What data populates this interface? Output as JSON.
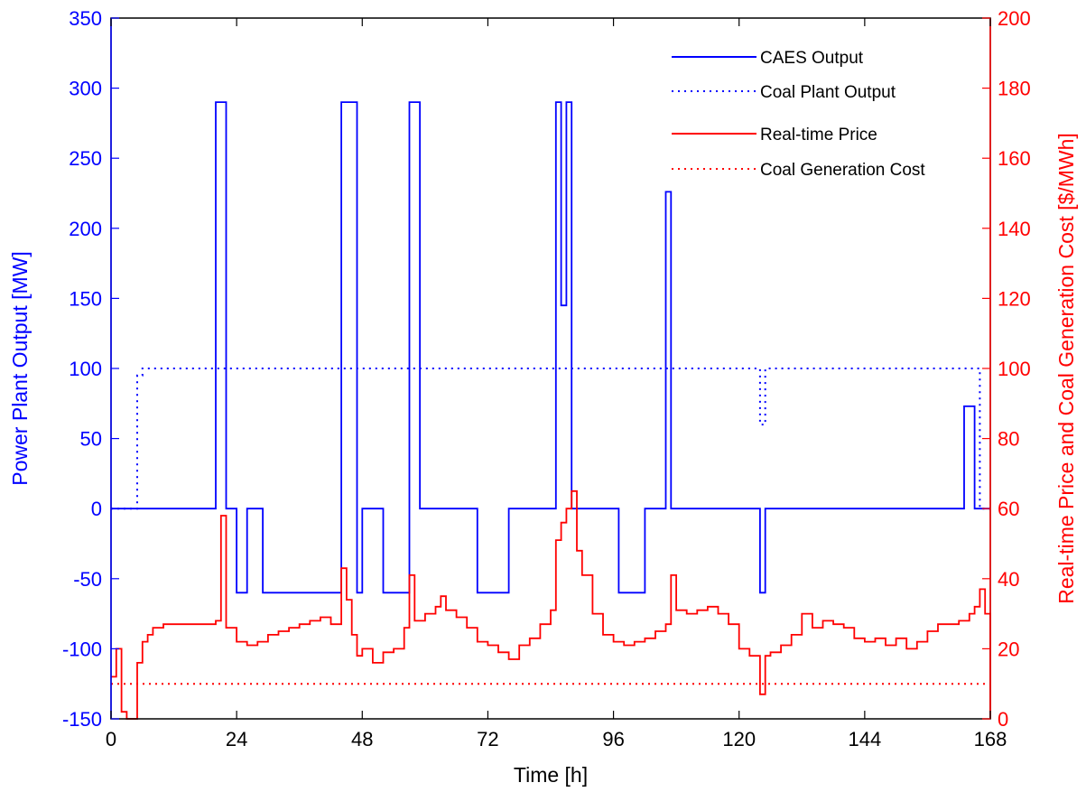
{
  "chart_data": {
    "type": "line",
    "xlabel": "Time [h]",
    "ylabel_left": "Power Plant Output [MW]",
    "ylabel_right": "Real-time Price and Coal Generation Cost [$/MWh]",
    "xlim": [
      0,
      168
    ],
    "ylim_left": [
      -150,
      350
    ],
    "ylim_right": [
      0,
      200
    ],
    "x_ticks": [
      0,
      24,
      48,
      72,
      96,
      120,
      144,
      168
    ],
    "y_ticks_left": [
      -150,
      -100,
      -50,
      0,
      50,
      100,
      150,
      200,
      250,
      300,
      350
    ],
    "y_ticks_right": [
      0,
      20,
      40,
      60,
      80,
      100,
      120,
      140,
      160,
      180,
      200
    ],
    "grid": false,
    "legend_position": "top-right",
    "colors": {
      "left_axis": "#0000ff",
      "right_axis": "#ff0000",
      "x_axis": "#000000"
    },
    "series": [
      {
        "name": "CAES Output",
        "axis": "left",
        "color": "#0000ff",
        "style": "solid",
        "step": true,
        "x": [
          0,
          20,
          22,
          24,
          26,
          29,
          44,
          47,
          48,
          52,
          57,
          59,
          70,
          76,
          85,
          86,
          87,
          88,
          89,
          97,
          102,
          106,
          107,
          124,
          125,
          163,
          165,
          168
        ],
        "y": [
          0,
          290,
          0,
          -60,
          0,
          -60,
          290,
          -60,
          0,
          -60,
          290,
          0,
          -60,
          0,
          290,
          145,
          290,
          0,
          0,
          -60,
          0,
          226,
          0,
          -60,
          0,
          73,
          0,
          0
        ]
      },
      {
        "name": "Coal Plant Output",
        "axis": "left",
        "color": "#0000ff",
        "style": "dotted",
        "step": true,
        "x": [
          0,
          3,
          5,
          6,
          124,
          125,
          166,
          168
        ],
        "y": [
          0,
          0,
          95,
          100,
          60,
          100,
          0,
          0
        ]
      },
      {
        "name": "Real-time Price",
        "axis": "right",
        "color": "#ff0000",
        "style": "solid",
        "step": true,
        "x": [
          0,
          1,
          2,
          3,
          5,
          6,
          7,
          8,
          10,
          12,
          14,
          16,
          18,
          20,
          21,
          22,
          24,
          26,
          28,
          30,
          32,
          34,
          36,
          38,
          40,
          42,
          44,
          45,
          46,
          47,
          48,
          50,
          52,
          54,
          56,
          57,
          58,
          59,
          60,
          62,
          63,
          64,
          66,
          68,
          70,
          72,
          74,
          76,
          78,
          80,
          82,
          84,
          85,
          86,
          87,
          88,
          89,
          90,
          92,
          94,
          96,
          98,
          100,
          102,
          104,
          106,
          107,
          108,
          110,
          112,
          114,
          116,
          118,
          120,
          122,
          124,
          125,
          126,
          128,
          130,
          132,
          134,
          136,
          138,
          140,
          142,
          144,
          146,
          148,
          150,
          152,
          154,
          156,
          158,
          160,
          162,
          164,
          165,
          166,
          167,
          168
        ],
        "y": [
          12,
          20,
          2,
          0,
          16,
          22,
          24,
          26,
          27,
          27,
          27,
          27,
          27,
          28,
          58,
          26,
          22,
          21,
          22,
          24,
          25,
          26,
          27,
          28,
          29,
          27,
          43,
          34,
          24,
          18,
          20,
          16,
          19,
          20,
          26,
          41,
          28,
          28,
          30,
          32,
          35,
          31,
          29,
          26,
          22,
          21,
          19,
          17,
          21,
          23,
          27,
          31,
          51,
          56,
          60,
          65,
          48,
          41,
          30,
          24,
          22,
          21,
          22,
          23,
          25,
          27,
          41,
          31,
          30,
          31,
          32,
          30,
          27,
          20,
          18,
          7,
          18,
          19,
          21,
          24,
          30,
          26,
          28,
          27,
          26,
          23,
          22,
          23,
          21,
          23,
          20,
          22,
          25,
          27,
          27,
          28,
          30,
          32,
          37,
          30,
          0
        ]
      },
      {
        "name": "Coal Generation Cost",
        "axis": "right",
        "color": "#ff0000",
        "style": "dotted",
        "step": false,
        "x": [
          0,
          168
        ],
        "y": [
          10,
          10
        ]
      }
    ]
  }
}
